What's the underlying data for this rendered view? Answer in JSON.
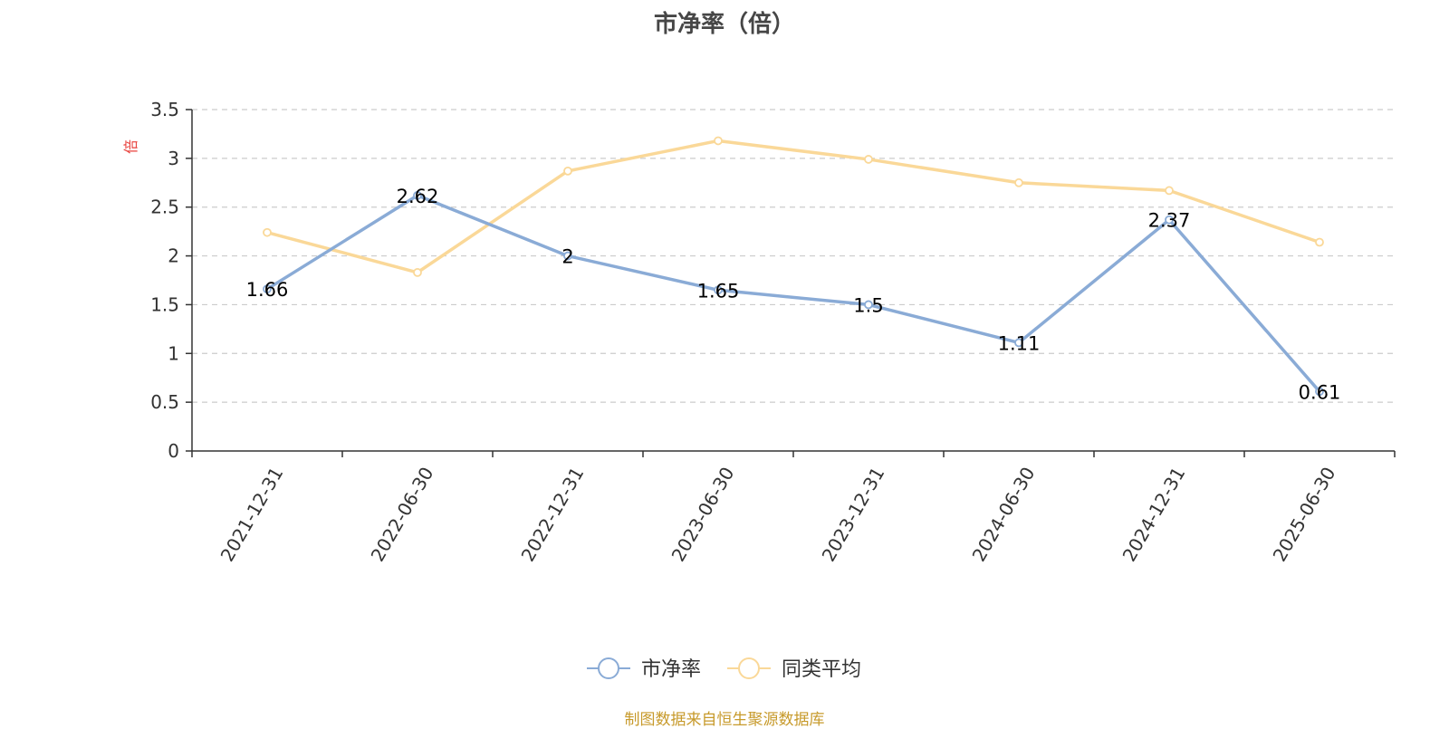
{
  "chart_data": {
    "type": "line",
    "title": "市净率（倍）",
    "ylabel": "倍",
    "categories": [
      "2021-12-31",
      "2022-06-30",
      "2022-12-31",
      "2023-06-30",
      "2023-12-31",
      "2024-06-30",
      "2024-12-31",
      "2025-06-30"
    ],
    "yticks": [
      "0",
      "0.5",
      "1",
      "1.5",
      "2",
      "2.5",
      "3",
      "3.5"
    ],
    "ylim": [
      0,
      3.5
    ],
    "grid": true,
    "legend_position": "bottom",
    "series": [
      {
        "name": "市净率",
        "color": "#8aabd6",
        "values": [
          1.66,
          2.62,
          2.0,
          1.65,
          1.5,
          1.11,
          2.37,
          0.61
        ],
        "labels": [
          "1.66",
          "2.62",
          "2",
          "1.65",
          "1.5",
          "1.11",
          "2.37",
          "0.61"
        ]
      },
      {
        "name": "同类平均",
        "color": "#fad898",
        "values": [
          2.24,
          1.83,
          2.87,
          3.18,
          2.99,
          2.75,
          2.67,
          2.14
        ]
      }
    ],
    "source": "制图数据来自恒生聚源数据库"
  }
}
